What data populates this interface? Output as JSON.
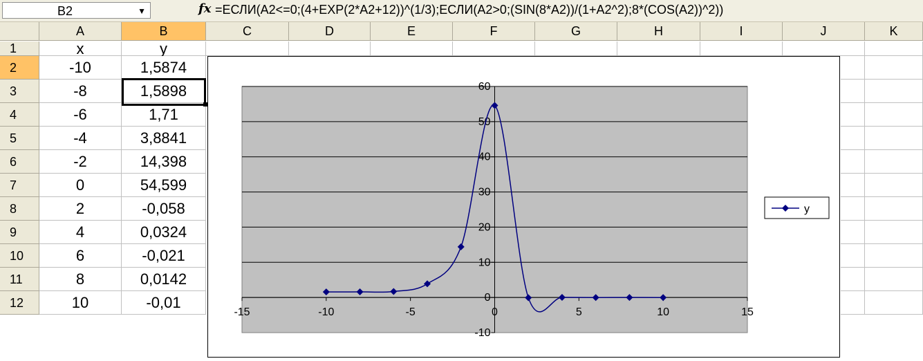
{
  "formula_bar": {
    "name_box": "B2",
    "dropdown_arrow": "▼",
    "fx_label": "fx",
    "formula": "=ЕСЛИ(A2<=0;(4+EXP(2*A2+12))^(1/3);ЕСЛИ(A2>0;(SIN(8*A2))/(1+A2^2);8*(COS(A2))^2))"
  },
  "columns": [
    "A",
    "B",
    "C",
    "D",
    "E",
    "F",
    "G",
    "H",
    "I",
    "J",
    "K"
  ],
  "rows": [
    "1",
    "2",
    "3",
    "4",
    "5",
    "6",
    "7",
    "8",
    "9",
    "10",
    "11",
    "12"
  ],
  "table": [
    {
      "a": "x",
      "b": "y"
    },
    {
      "a": "-10",
      "b": "1,5874"
    },
    {
      "a": "-8",
      "b": "1,5898"
    },
    {
      "a": "-6",
      "b": "1,71"
    },
    {
      "a": "-4",
      "b": "3,8841"
    },
    {
      "a": "-2",
      "b": "14,398"
    },
    {
      "a": "0",
      "b": "54,599"
    },
    {
      "a": "2",
      "b": "-0,058"
    },
    {
      "a": "4",
      "b": "0,0324"
    },
    {
      "a": "6",
      "b": "-0,021"
    },
    {
      "a": "8",
      "b": "0,0142"
    },
    {
      "a": "10",
      "b": "-0,01"
    }
  ],
  "colors": {
    "series": "#000080",
    "plot_area": "#c0c0c0",
    "selected_header": "#ffc266"
  },
  "chart_data": {
    "type": "scatter",
    "smooth": true,
    "series": [
      {
        "name": "y",
        "x": [
          -10,
          -8,
          -6,
          -4,
          -2,
          0,
          2,
          4,
          6,
          8,
          10
        ],
        "y": [
          1.5874,
          1.5898,
          1.71,
          3.8841,
          14.398,
          54.599,
          -0.058,
          0.0324,
          -0.021,
          0.0142,
          -0.01
        ]
      }
    ],
    "xlim": [
      -15,
      15
    ],
    "ylim": [
      -10,
      60
    ],
    "xticks": [
      -15,
      -10,
      -5,
      0,
      5,
      10,
      15
    ],
    "yticks": [
      -10,
      0,
      10,
      20,
      30,
      40,
      50,
      60
    ],
    "xtick_labels": [
      "-15",
      "-10",
      "-5",
      "0",
      "5",
      "10",
      "15"
    ],
    "ytick_labels": [
      "-10",
      "0",
      "10",
      "20",
      "30",
      "40",
      "50",
      "60"
    ],
    "grid": "horizontal",
    "legend": "right"
  }
}
